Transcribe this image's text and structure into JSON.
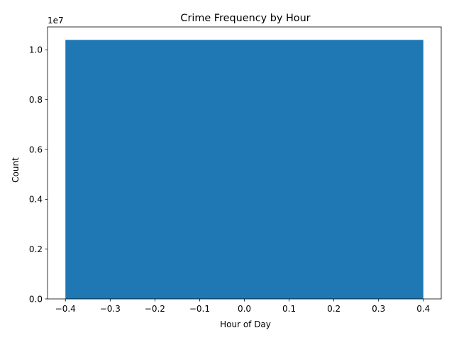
{
  "chart_data": {
    "type": "bar",
    "title": "Crime Frequency by Hour",
    "xlabel": "Hour of Day",
    "ylabel": "Count",
    "bars": [
      {
        "x": 0,
        "width": 0.8,
        "value": 10400000
      }
    ],
    "xlim": [
      -0.44,
      0.44
    ],
    "ylim": [
      0,
      10920000
    ],
    "x_ticks": [
      -0.4,
      -0.3,
      -0.2,
      -0.1,
      0.0,
      0.1,
      0.2,
      0.3,
      0.4
    ],
    "x_tick_labels": [
      "−0.4",
      "−0.3",
      "−0.2",
      "−0.1",
      "0.0",
      "0.1",
      "0.2",
      "0.3",
      "0.4"
    ],
    "y_ticks": [
      0,
      2000000,
      4000000,
      6000000,
      8000000,
      10000000
    ],
    "y_tick_labels": [
      "0.0",
      "0.2",
      "0.4",
      "0.6",
      "0.8",
      "1.0"
    ],
    "y_offset_label": "1e7",
    "grid": false,
    "colors": {
      "bar": "#1f77b4",
      "axes": "#000000"
    }
  }
}
